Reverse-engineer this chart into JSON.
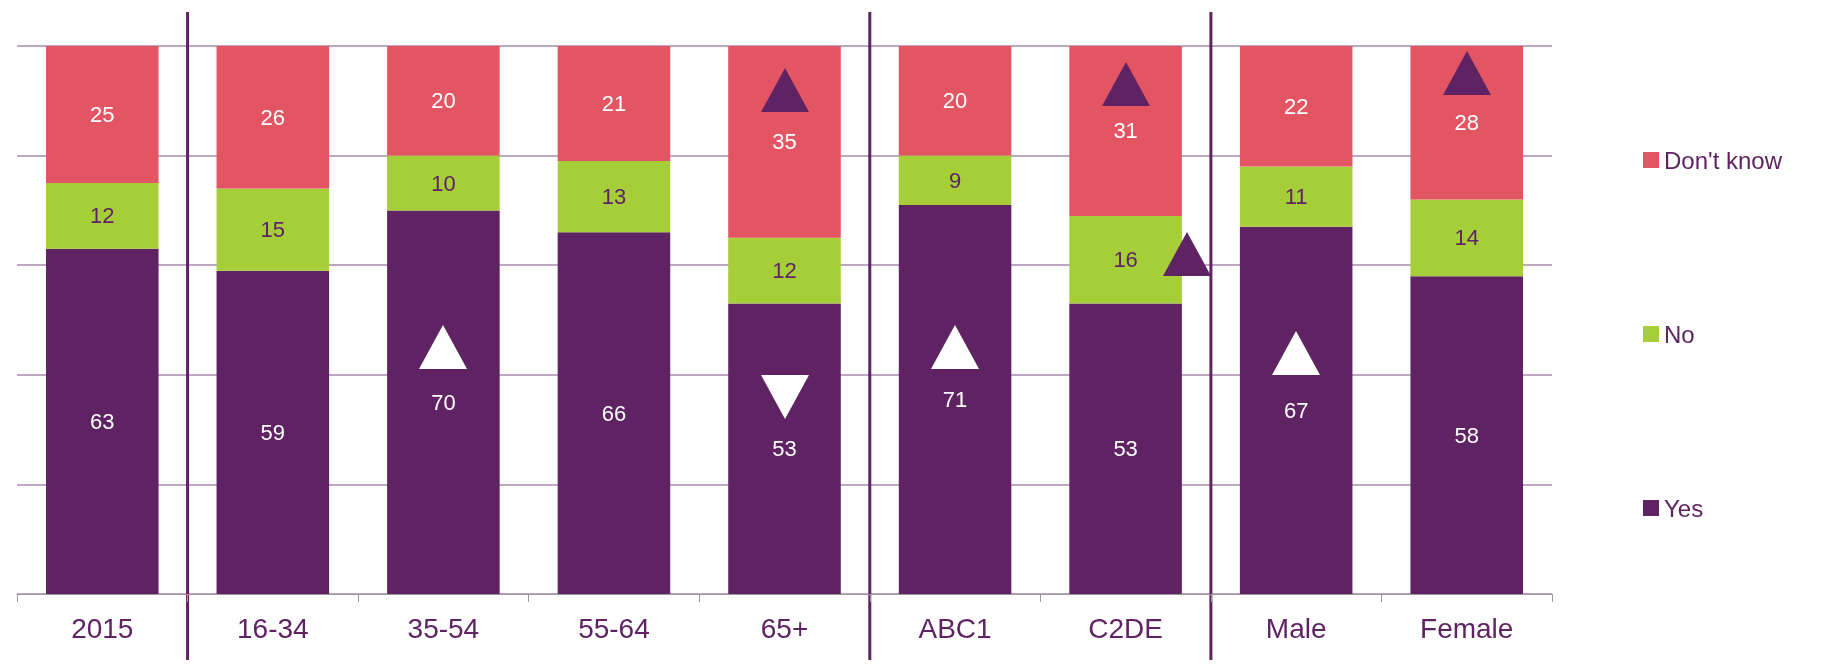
{
  "chart_data": {
    "type": "bar",
    "stacked": true,
    "categories": [
      "2015",
      "16-34",
      "35-54",
      "55-64",
      "65+",
      "ABC1",
      "C2DE",
      "Male",
      "Female"
    ],
    "series": [
      {
        "name": "Yes",
        "color": "#5f2363",
        "values": [
          63,
          59,
          70,
          66,
          53,
          71,
          53,
          67,
          58
        ]
      },
      {
        "name": "No",
        "color": "#a6ce39",
        "values": [
          12,
          15,
          10,
          13,
          12,
          9,
          16,
          11,
          14
        ]
      },
      {
        "name": "Don't know",
        "color": "#e45564",
        "values": [
          25,
          26,
          20,
          21,
          35,
          20,
          31,
          22,
          28
        ]
      }
    ],
    "ylim": [
      0,
      100
    ],
    "yticks": [
      0,
      20,
      40,
      60,
      80,
      100
    ],
    "grid": "y",
    "tick_labels": "x",
    "data_labels": true,
    "legend": "right"
  }
}
